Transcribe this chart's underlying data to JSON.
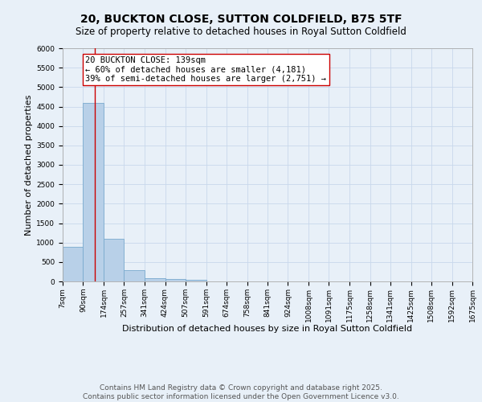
{
  "title": "20, BUCKTON CLOSE, SUTTON COLDFIELD, B75 5TF",
  "subtitle": "Size of property relative to detached houses in Royal Sutton Coldfield",
  "xlabel": "Distribution of detached houses by size in Royal Sutton Coldfield",
  "ylabel": "Number of detached properties",
  "bar_color": "#b8d0e8",
  "bar_edge_color": "#7aaace",
  "grid_color": "#c8d8ec",
  "background_color": "#e8f0f8",
  "bin_edges": [
    7,
    90,
    174,
    257,
    341,
    424,
    507,
    591,
    674,
    758,
    841,
    924,
    1008,
    1091,
    1175,
    1258,
    1341,
    1425,
    1508,
    1592,
    1675
  ],
  "bin_counts": [
    900,
    4600,
    1100,
    300,
    80,
    60,
    40,
    0,
    0,
    0,
    0,
    0,
    0,
    0,
    0,
    0,
    0,
    0,
    0,
    0
  ],
  "ylim": [
    0,
    6000
  ],
  "yticks": [
    0,
    500,
    1000,
    1500,
    2000,
    2500,
    3000,
    3500,
    4000,
    4500,
    5000,
    5500,
    6000
  ],
  "property_size": 139,
  "red_line_color": "#cc0000",
  "annotation_text": "20 BUCKTON CLOSE: 139sqm\n← 60% of detached houses are smaller (4,181)\n39% of semi-detached houses are larger (2,751) →",
  "annotation_box_color": "#ffffff",
  "annotation_box_edge_color": "#cc0000",
  "annotation_fontsize": 7.5,
  "title_fontsize": 10,
  "subtitle_fontsize": 8.5,
  "tick_label_fontsize": 6.5,
  "axis_label_fontsize": 8,
  "ylabel_fontsize": 8,
  "footer_text": "Contains HM Land Registry data © Crown copyright and database right 2025.\nContains public sector information licensed under the Open Government Licence v3.0.",
  "footer_fontsize": 6.5
}
